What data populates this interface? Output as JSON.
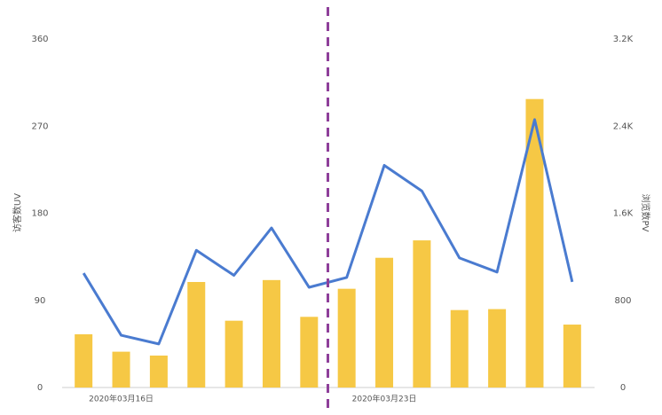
{
  "chart_data": {
    "type": "bar-line",
    "y_label": "访客数UV",
    "y2_label": "浏览数PV",
    "categories": [
      null,
      "2020年03月16日",
      null,
      null,
      null,
      null,
      null,
      null,
      "2020年03月23日",
      null,
      null,
      null,
      null,
      null
    ],
    "series": [
      {
        "type": "bar",
        "color": "#f6c845",
        "values": [
          55,
          37,
          33,
          109,
          69,
          111,
          73,
          102,
          134,
          152,
          80,
          81,
          298,
          65
        ]
      },
      {
        "type": "line",
        "color": "#4a7bd0",
        "axis": "y2",
        "values": [
          1050,
          480,
          400,
          1260,
          1030,
          1465,
          920,
          1010,
          2040,
          1805,
          1190,
          1060,
          2460,
          970
        ]
      }
    ],
    "ylim": [
      0,
      360
    ],
    "yticks": [
      0,
      90,
      180,
      270,
      360
    ],
    "y2lim": [
      0,
      3200
    ],
    "y2ticks": [
      0,
      800,
      {
        "value": 1600,
        "label": "1.6K"
      },
      {
        "value": 2400,
        "label": "2.4K"
      },
      {
        "value": 3200,
        "label": "3.2K"
      }
    ]
  }
}
